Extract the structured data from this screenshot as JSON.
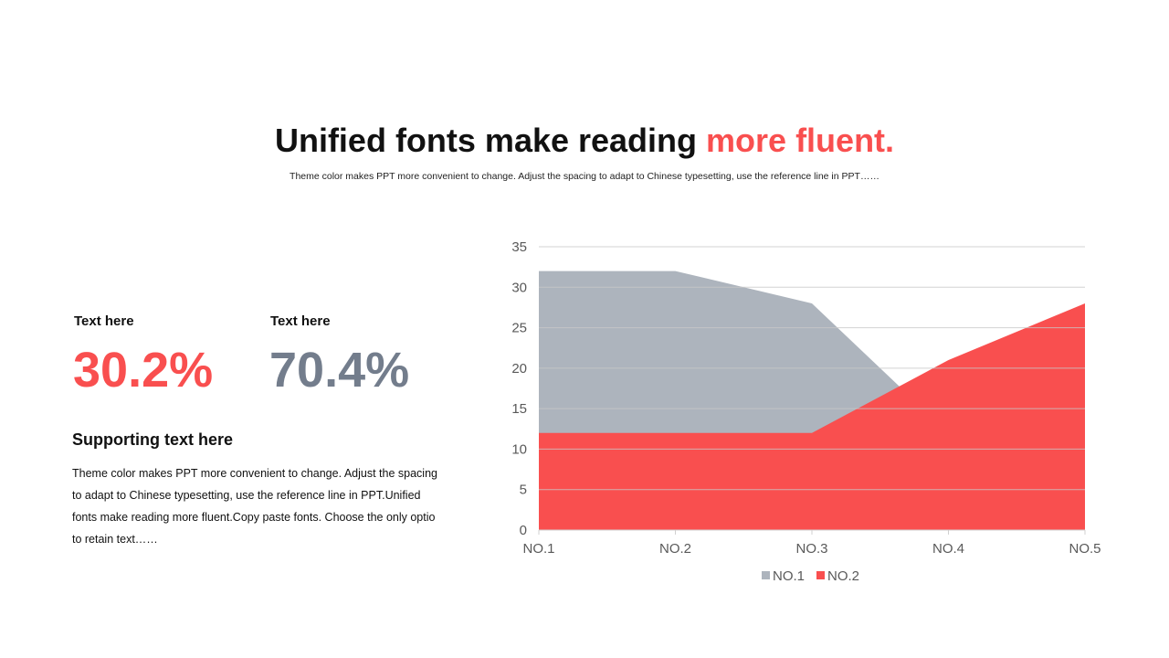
{
  "header": {
    "title_main": "Unified fonts make reading ",
    "title_accent": "more fluent.",
    "subtitle": "Theme color makes PPT more convenient  to change. Adjust the spacing to adapt to Chinese typesetting, use the reference line in PPT……"
  },
  "stats": [
    {
      "label": "Text here",
      "value": "30.2%",
      "color": "#f94f4f"
    },
    {
      "label": "Text here",
      "value": "70.4%",
      "color": "#737d8c"
    }
  ],
  "support": {
    "title": "Supporting text here",
    "body": "Theme  color makes PPT more convenient  to change. Adjust the spacing to adapt to Chinese typesetting, use the reference line in PPT.Unified  fonts make reading more fluent.Copy paste fonts. Choose the only optio to retain text……"
  },
  "chart_data": {
    "type": "area",
    "categories": [
      "NO.1",
      "NO.2",
      "NO.3",
      "NO.4",
      "NO.5"
    ],
    "series": [
      {
        "name": "NO.1",
        "values": [
          32,
          32,
          28,
          12,
          10
        ],
        "color": "#adb4bd"
      },
      {
        "name": "NO.2",
        "values": [
          12,
          12,
          12,
          21,
          28
        ],
        "color": "#f94f4f"
      }
    ],
    "ylim": [
      0,
      35
    ],
    "yticks": [
      0,
      5,
      10,
      15,
      20,
      25,
      30,
      35
    ],
    "grid": true,
    "legend": "bottom"
  }
}
